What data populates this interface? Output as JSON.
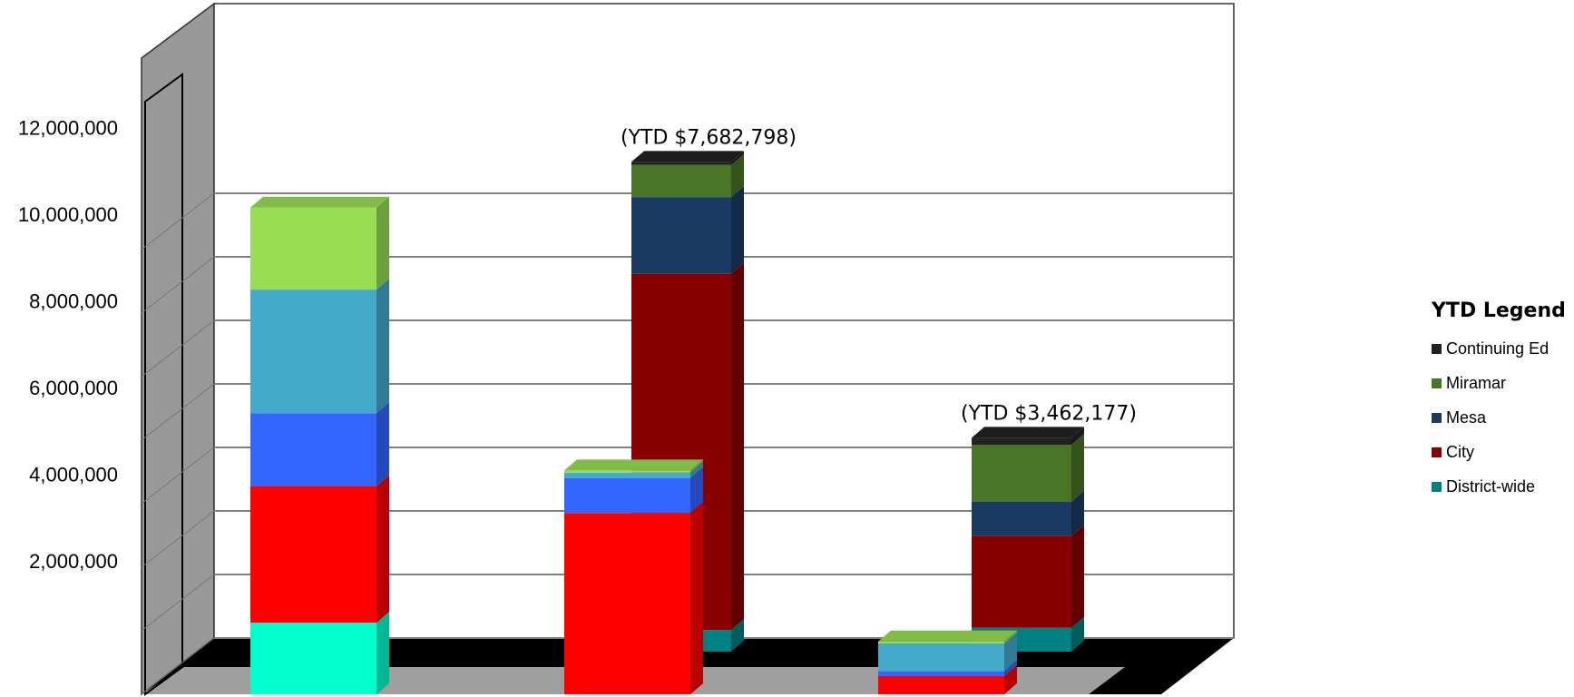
{
  "chart_data": {
    "type": "bar",
    "stacked": true,
    "three_d": true,
    "grid": true,
    "y_ticks": [
      "2,000,000",
      "4,000,000",
      "6,000,000",
      "8,000,000",
      "10,000,000",
      "12,000,000"
    ],
    "ylim": [
      0,
      13000000
    ],
    "bars": [
      {
        "segments": [
          {
            "color": "#00FFCC",
            "value": 1650000
          },
          {
            "color": "#FF0000",
            "value": 3150000
          },
          {
            "color": "#3366FF",
            "value": 1680000
          },
          {
            "color": "#44AACC",
            "value": 2850000
          },
          {
            "color": "#99DD55",
            "value": 1890000
          }
        ]
      },
      {
        "segments": [
          {
            "color": "#FF0000",
            "value": 4180000
          },
          {
            "color": "#3366FF",
            "value": 800000
          },
          {
            "color": "#44AACC",
            "value": 130000
          },
          {
            "color": "#99DD55",
            "value": 50000
          }
        ]
      },
      {
        "segments": [
          {
            "color": "#008080",
            "value": 500000
          },
          {
            "color": "#880000",
            "value": 8210000
          },
          {
            "color": "#1B3A62",
            "value": 1770000
          },
          {
            "color": "#4A7526",
            "value": 740000
          },
          {
            "color": "#222222",
            "value": 70000
          }
        ],
        "annotation": "(YTD $7,682,798)"
      },
      {
        "segments": [
          {
            "color": "#FF0000",
            "value": 420000
          },
          {
            "color": "#3366FF",
            "value": 110000
          },
          {
            "color": "#44AACC",
            "value": 640000
          },
          {
            "color": "#99DD55",
            "value": 50000
          }
        ]
      },
      {
        "segments": [
          {
            "color": "#008080",
            "value": 550000
          },
          {
            "color": "#880000",
            "value": 2120000
          },
          {
            "color": "#1B3A62",
            "value": 790000
          },
          {
            "color": "#4A7526",
            "value": 1310000
          },
          {
            "color": "#222222",
            "value": 160000
          }
        ],
        "annotation": "(YTD $3,462,177)"
      }
    ],
    "legend": {
      "title": "YTD Legend",
      "position": "right",
      "items": [
        {
          "label": "Continuing Ed",
          "color": "#222222"
        },
        {
          "label": "Miramar",
          "color": "#4A7526"
        },
        {
          "label": "Mesa",
          "color": "#1B3A62"
        },
        {
          "label": "City",
          "color": "#880000"
        },
        {
          "label": "District-wide",
          "color": "#008080"
        }
      ]
    }
  }
}
